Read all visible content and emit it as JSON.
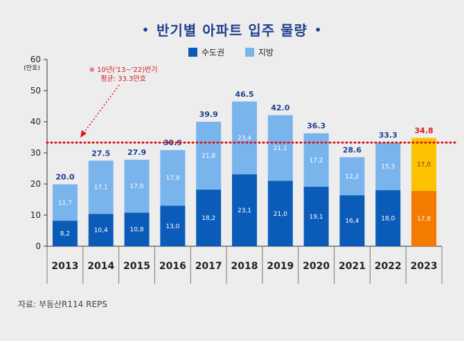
{
  "chart_data": {
    "type": "bar",
    "stacked": true,
    "title": "반기별 아파트 입주 물량",
    "title_bullet": "•",
    "y_unit": "(만호)",
    "ylim": [
      0,
      60
    ],
    "yticks": [
      0,
      10,
      20,
      30,
      40,
      50,
      60
    ],
    "categories": [
      "2013",
      "2014",
      "2015",
      "2016",
      "2017",
      "2018",
      "2019",
      "2020",
      "2021",
      "2022",
      "2023"
    ],
    "series": [
      {
        "name": "수도권",
        "values": [
          8.2,
          10.4,
          10.8,
          13.0,
          18.2,
          23.1,
          21.0,
          19.1,
          16.4,
          18.0,
          17.8
        ],
        "labels": [
          "8,2",
          "10,4",
          "10,8",
          "13,0",
          "18,2",
          "23,1",
          "21,0",
          "19,1",
          "16,4",
          "18,0",
          "17,8"
        ]
      },
      {
        "name": "지방",
        "values": [
          11.7,
          17.1,
          17.0,
          17.9,
          21.8,
          23.4,
          21.1,
          17.2,
          12.2,
          15.3,
          17.0
        ],
        "labels": [
          "11,7",
          "17,1",
          "17,0",
          "17,9",
          "21,8",
          "23,4",
          "21,1",
          "17,2",
          "12,2",
          "15,3",
          "17,0"
        ]
      }
    ],
    "totals": [
      20.0,
      27.5,
      27.9,
      30.9,
      39.9,
      46.5,
      42.0,
      36.3,
      28.6,
      33.3,
      34.8
    ],
    "total_labels": [
      "20.0",
      "27.5",
      "27.9",
      "30.9",
      "39.9",
      "46.5",
      "42.0",
      "36.3",
      "28.6",
      "33.3",
      "34.8"
    ],
    "average_line": 33.3,
    "annotation_line1": "※ 10년('13~'22)반기",
    "annotation_line2": "평균: 33.3만호",
    "legend_position": "top"
  },
  "colors": {
    "metro": "#0a5cb8",
    "region": "#7ab4ec",
    "metro_forecast": "#f57a00",
    "region_forecast": "#fbc300",
    "forecast_total": "#e01c1c",
    "average": "#d9161c",
    "title": "#1f3f8f",
    "label": "#1f3f8f"
  },
  "forecast_index": 10,
  "source": "자료: 부동산R114 REPS"
}
